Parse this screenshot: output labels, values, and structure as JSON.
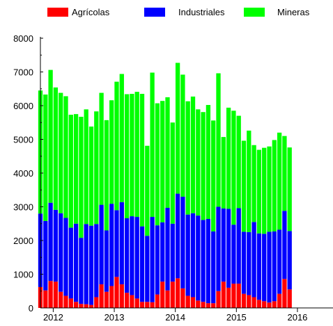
{
  "chart_data": {
    "type": "bar",
    "stacked": true,
    "title": "",
    "xlabel": "",
    "ylabel": "",
    "ylim": [
      0,
      8000
    ],
    "yticks": [
      0,
      1000,
      2000,
      3000,
      4000,
      5000,
      6000,
      7000,
      8000
    ],
    "xticks": [
      {
        "label": "2012",
        "x": 2012
      },
      {
        "label": "2013",
        "x": 2013
      },
      {
        "label": "2014",
        "x": 2014
      },
      {
        "label": "2015",
        "x": 2015
      },
      {
        "label": "2016",
        "x": 2016
      }
    ],
    "xlim": [
      2011.79,
      2016.4
    ],
    "x_start": 2011.79,
    "x_step": 0.0833,
    "grid": false,
    "legend": "top",
    "series": [
      {
        "name": "Agrícolas",
        "color": "#ff0000",
        "values": [
          620,
          520,
          800,
          780,
          480,
          360,
          280,
          180,
          120,
          110,
          90,
          320,
          700,
          480,
          650,
          920,
          700,
          450,
          380,
          280,
          180,
          180,
          170,
          400,
          780,
          520,
          780,
          880,
          580,
          360,
          320,
          220,
          180,
          140,
          140,
          500,
          780,
          600,
          720,
          720,
          420,
          380,
          320,
          240,
          200,
          160,
          200,
          420,
          860,
          550
        ]
      },
      {
        "name": "Industriales",
        "color": "#0000ff",
        "values": [
          2180,
          2060,
          2320,
          2130,
          2330,
          2310,
          2100,
          2320,
          1960,
          2380,
          2350,
          2170,
          2360,
          1820,
          2440,
          1980,
          2440,
          2210,
          2340,
          2420,
          2240,
          1960,
          2530,
          2050,
          1760,
          2450,
          1720,
          2510,
          2720,
          2410,
          2490,
          2520,
          2430,
          2500,
          2130,
          2500,
          2170,
          2340,
          1750,
          2240,
          1840,
          1870,
          2230,
          1970,
          2000,
          2100,
          2070,
          1900,
          2020,
          1730
        ]
      },
      {
        "name": "Mineras",
        "color": "#00ff00",
        "values": [
          3650,
          3750,
          3940,
          3630,
          3570,
          3610,
          3350,
          3250,
          3590,
          3400,
          2940,
          3340,
          3320,
          3270,
          3070,
          3810,
          3800,
          3680,
          3630,
          3710,
          3930,
          2670,
          4280,
          3620,
          3600,
          3280,
          3000,
          3880,
          3620,
          3360,
          3460,
          3150,
          3200,
          3380,
          3290,
          3960,
          2120,
          3000,
          3380,
          2740,
          2700,
          3010,
          2280,
          2480,
          2550,
          2530,
          2710,
          2880,
          2220,
          2480
        ]
      }
    ]
  }
}
